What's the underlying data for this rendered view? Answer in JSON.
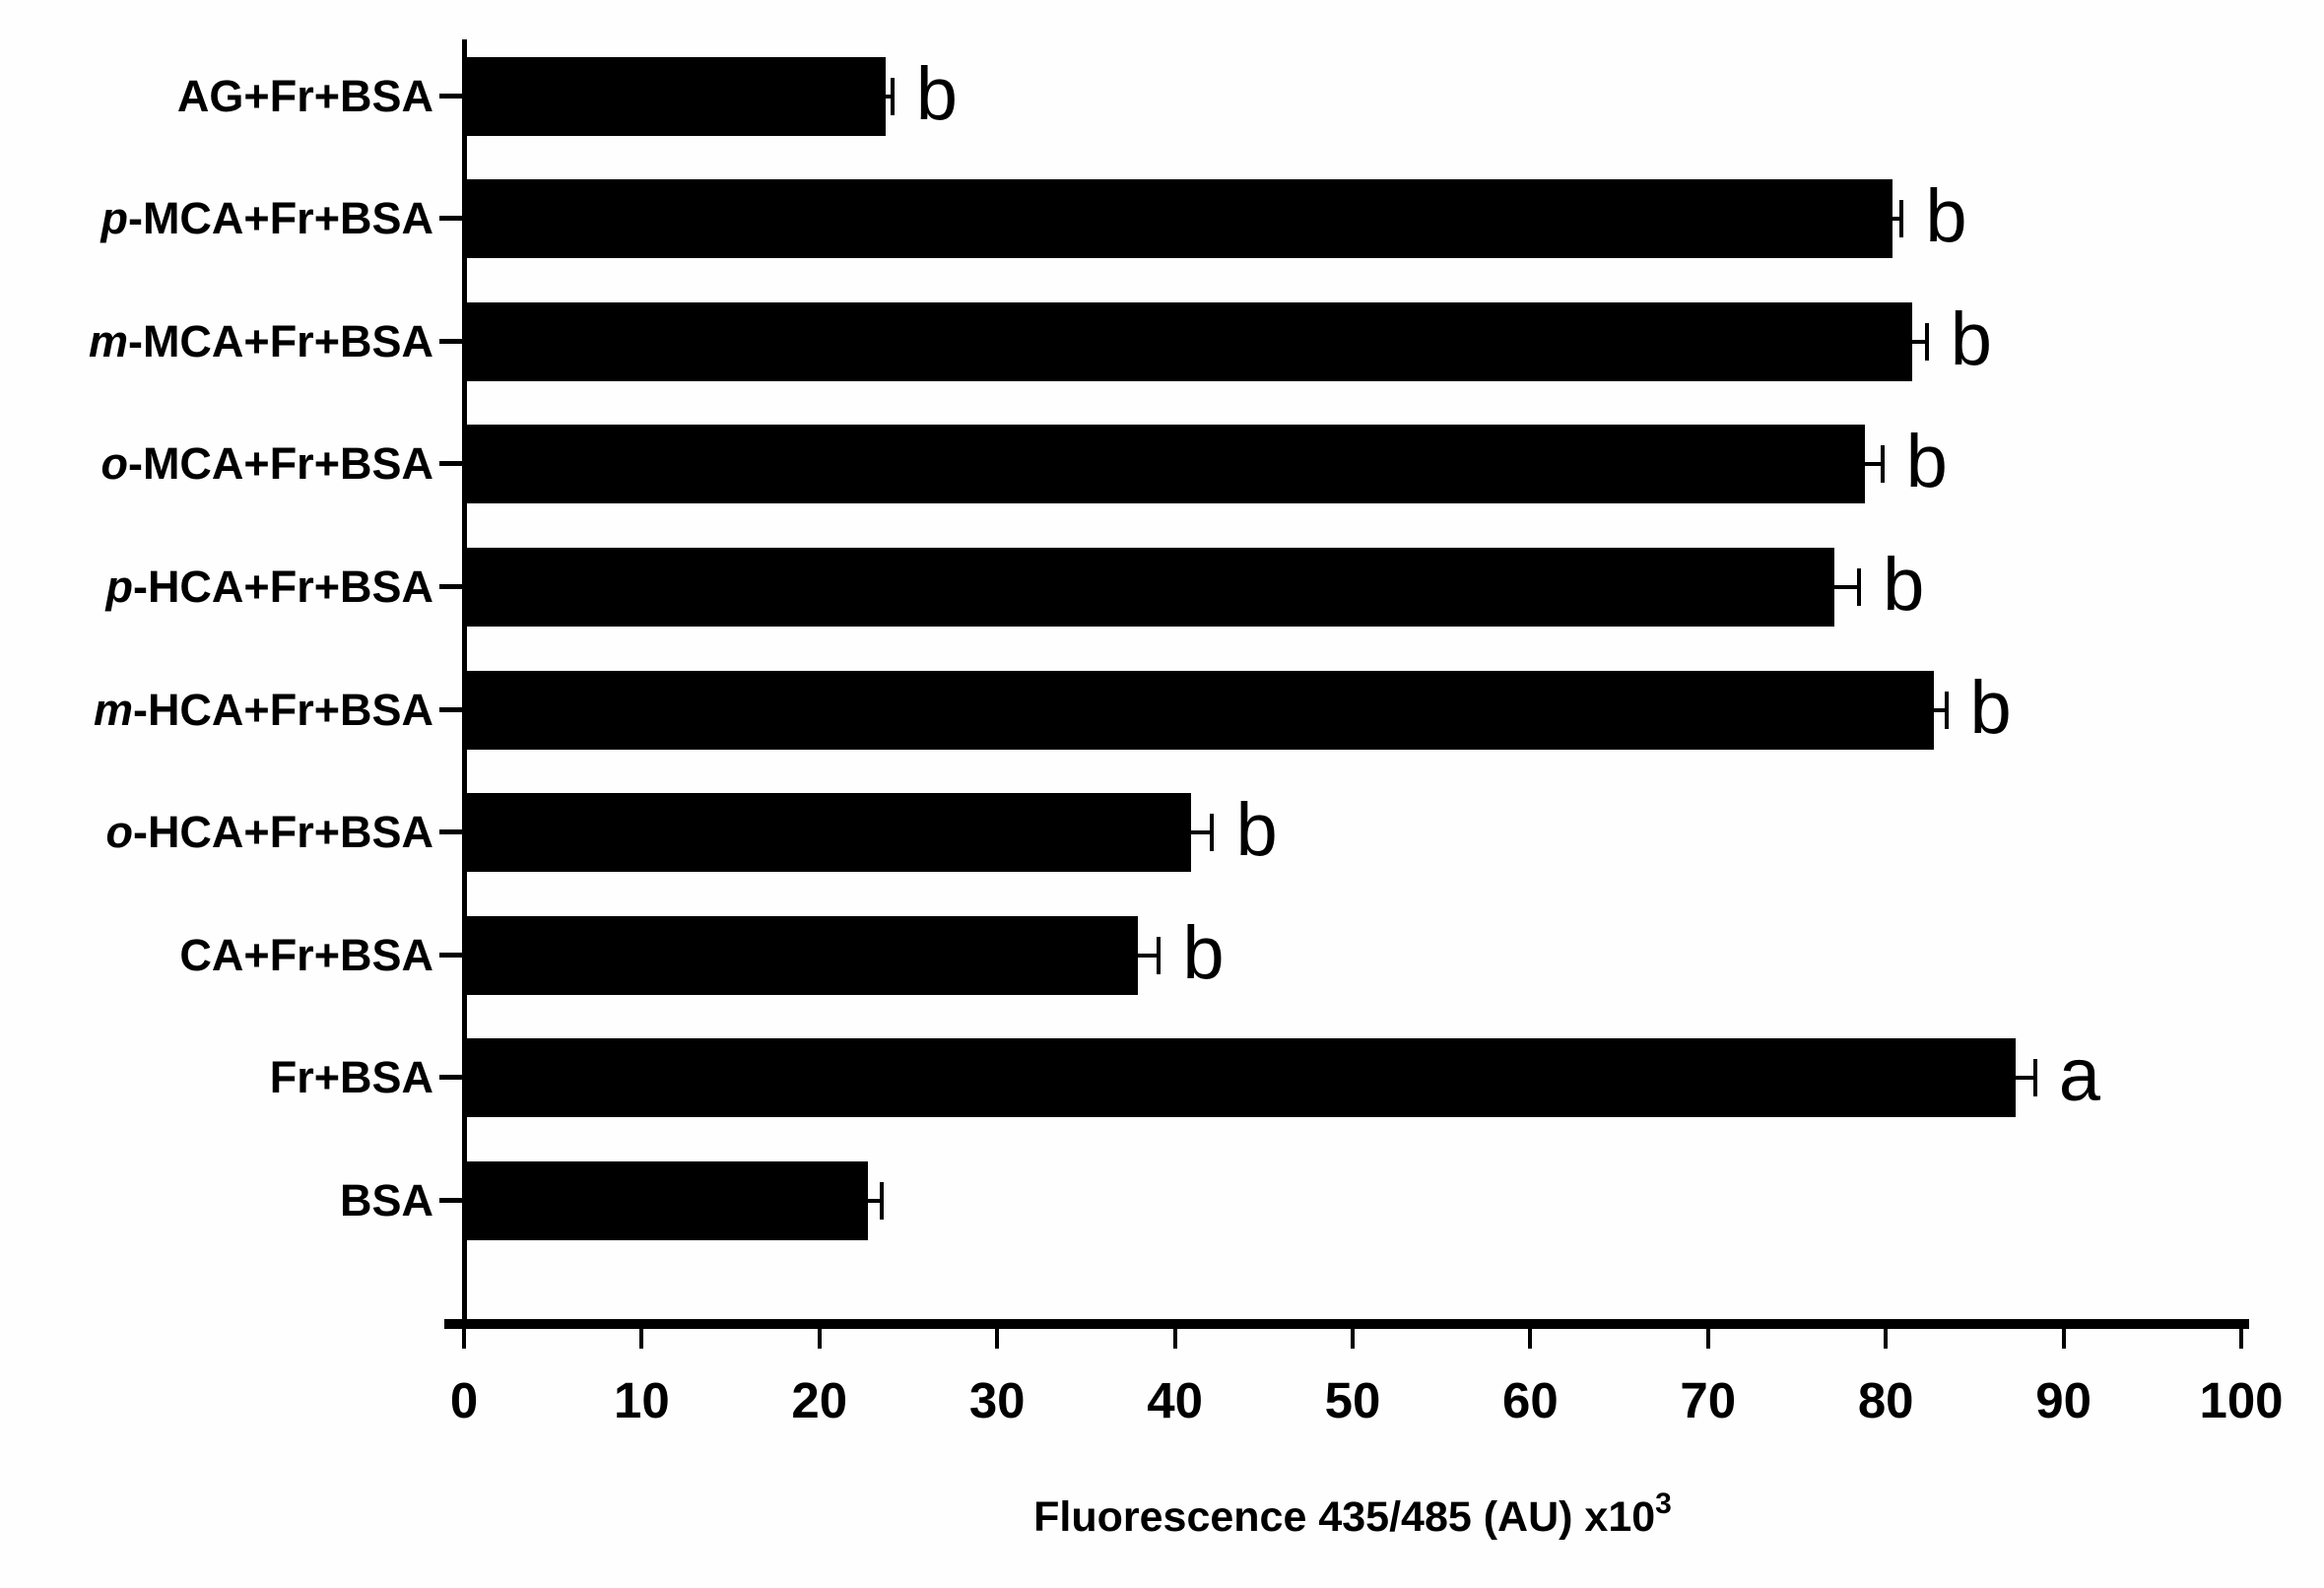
{
  "chart_data": {
    "type": "bar",
    "orientation": "horizontal",
    "title": "",
    "xlabel_text": "Fluorescence 435/485 (AU) x10",
    "xlabel_sup": "3",
    "ylabel": "",
    "xlim": [
      0,
      100
    ],
    "x_ticks": [
      0,
      10,
      20,
      30,
      40,
      50,
      60,
      70,
      80,
      90,
      100
    ],
    "grid": false,
    "legend": "none",
    "bar_color": "#000000",
    "background_color": "#fefefe",
    "categories": [
      {
        "italic": "",
        "text": "AG+Fr+BSA"
      },
      {
        "italic": "p",
        "text": "-MCA+Fr+BSA"
      },
      {
        "italic": "m",
        "text": "-MCA+Fr+BSA"
      },
      {
        "italic": "o",
        "text": "-MCA+Fr+BSA"
      },
      {
        "italic": "p",
        "text": "-HCA+Fr+BSA"
      },
      {
        "italic": "m",
        "text": "-HCA+Fr+BSA"
      },
      {
        "italic": "o",
        "text": "-HCA+Fr+BSA"
      },
      {
        "italic": "",
        "text": "CA+Fr+BSA"
      },
      {
        "italic": "",
        "text": "Fr+BSA"
      },
      {
        "italic": "",
        "text": "BSA"
      }
    ],
    "values": [
      23.7,
      80.4,
      81.5,
      78.8,
      77.1,
      82.7,
      40.9,
      37.9,
      87.3,
      22.7
    ],
    "errors": [
      0.4,
      0.5,
      0.8,
      1.0,
      1.4,
      0.7,
      1.2,
      1.2,
      1.1,
      0.8
    ],
    "sig_letters": [
      "b",
      "b",
      "b",
      "b",
      "b",
      "b",
      "b",
      "b",
      "a",
      ""
    ]
  }
}
